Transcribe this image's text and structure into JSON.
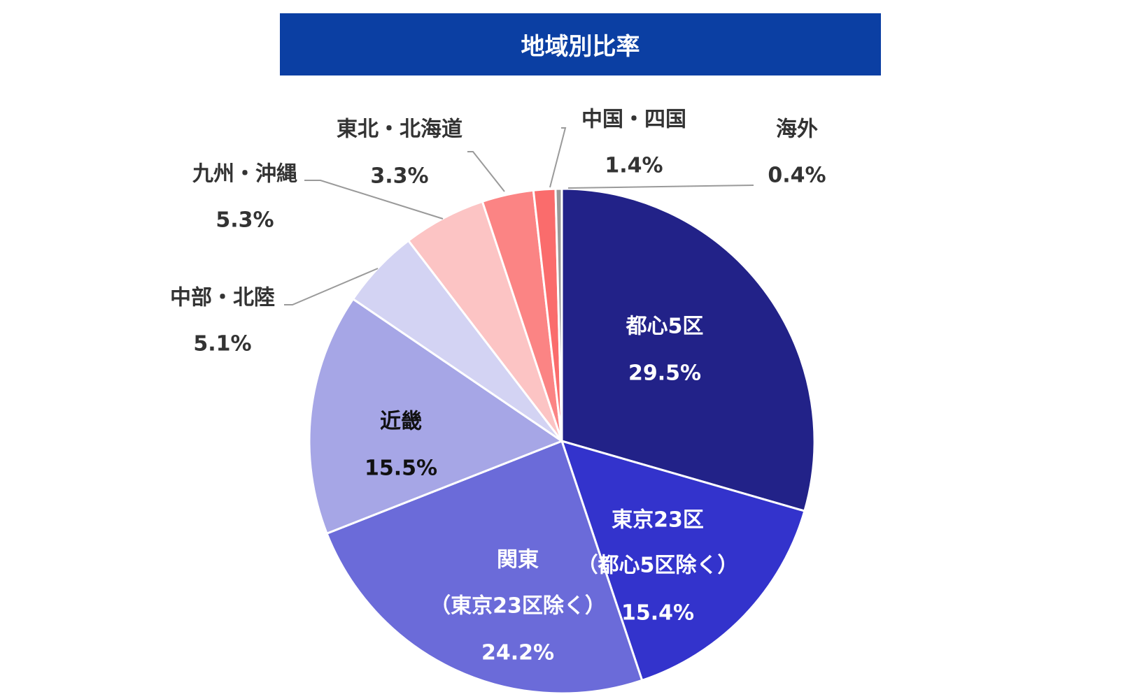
{
  "chart_data": {
    "type": "pie",
    "title": "地域別比率",
    "slices": [
      {
        "label_lines": [
          "都心5区"
        ],
        "value_label": "29.5%",
        "value": 29.5,
        "color": "#222288",
        "text_color": "#ffffff"
      },
      {
        "label_lines": [
          "東京23区",
          "（都心5区除く）"
        ],
        "value_label": "15.4%",
        "value": 15.4,
        "color": "#3333cc",
        "text_color": "#ffffff"
      },
      {
        "label_lines": [
          "関東",
          "（東京23区除く）"
        ],
        "value_label": "24.2%",
        "value": 24.2,
        "color": "#6b6bd9",
        "text_color": "#ffffff"
      },
      {
        "label_lines": [
          "近畿"
        ],
        "value_label": "15.5%",
        "value": 15.5,
        "color": "#a6a6e6",
        "text_color": "#111111"
      },
      {
        "label_lines": [
          "中部・北陸"
        ],
        "value_label": "5.1%",
        "value": 5.1,
        "color": "#d3d3f3",
        "text_color": "#333333"
      },
      {
        "label_lines": [
          "九州・沖縄"
        ],
        "value_label": "5.3%",
        "value": 5.3,
        "color": "#fcc4c4",
        "text_color": "#333333"
      },
      {
        "label_lines": [
          "東北・北海道"
        ],
        "value_label": "3.3%",
        "value": 3.3,
        "color": "#fb8484",
        "text_color": "#333333"
      },
      {
        "label_lines": [
          "中国・四国"
        ],
        "value_label": "1.4%",
        "value": 1.4,
        "color": "#fa6c6c",
        "text_color": "#333333"
      },
      {
        "label_lines": [
          "海外"
        ],
        "value_label": "0.4%",
        "value": 0.4,
        "color": "#999999",
        "text_color": "#333333"
      }
    ]
  }
}
